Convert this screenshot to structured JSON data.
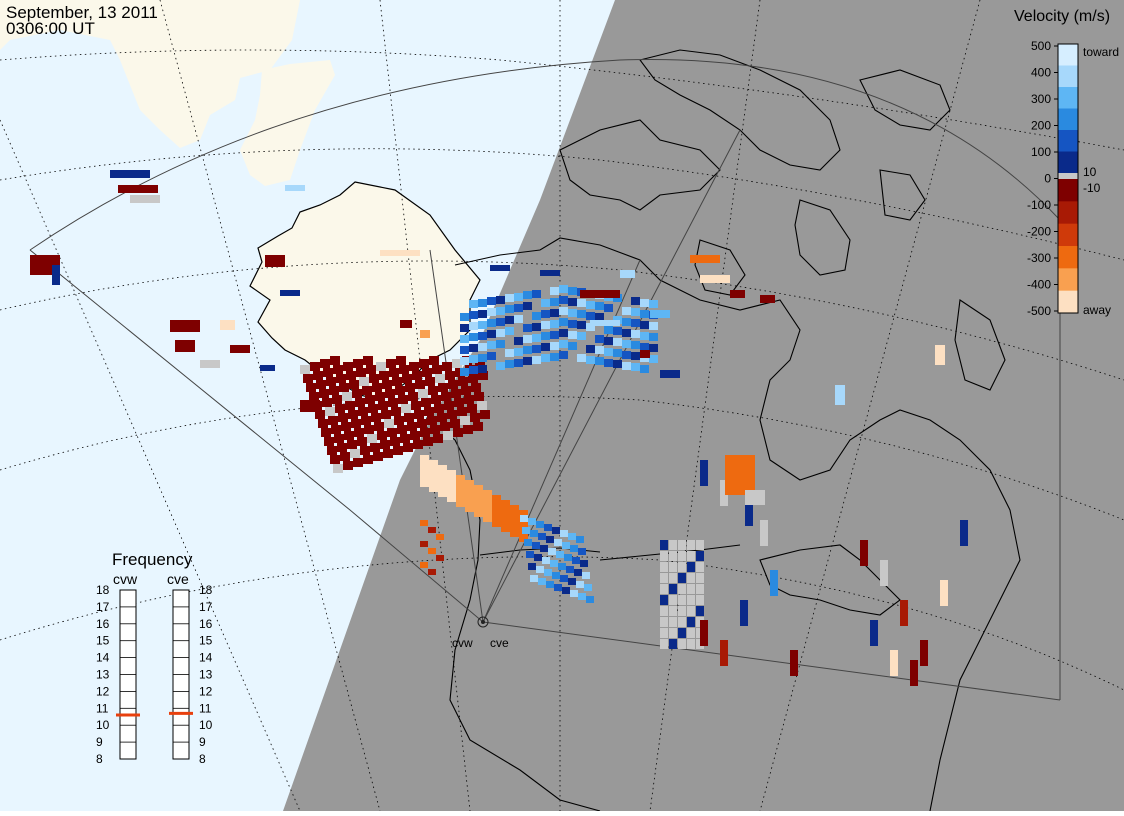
{
  "header": {
    "date": "September, 13 2011",
    "time": "0306:00 UT"
  },
  "colorbar": {
    "title": "Velocity (m/s)",
    "tick_labels": [
      "500",
      "400",
      "300",
      "200",
      "100",
      "0",
      "-100",
      "-200",
      "-300",
      "-400",
      "-500"
    ],
    "small_labels": [
      "10",
      "-10"
    ],
    "toward_label": "toward",
    "away_label": "away",
    "colors": [
      "#d6eeff",
      "#a7d8fb",
      "#5eb6f4",
      "#2a8ae0",
      "#1555c2",
      "#0a2a8a",
      "#c8c8c8",
      "#7e0000",
      "#a81a05",
      "#cf3a0a",
      "#ee6a10",
      "#f9a050",
      "#fde0c2"
    ]
  },
  "frequency": {
    "title": "Frequency",
    "radars": [
      "cvw",
      "cve"
    ],
    "scale": [
      "18",
      "17",
      "16",
      "15",
      "14",
      "13",
      "12",
      "11",
      "10",
      "9",
      "8"
    ],
    "values_mhz": [
      10.6,
      10.7
    ],
    "marker_color": "#e8400e"
  },
  "radars": {
    "labels": [
      "cvw",
      "cve"
    ]
  },
  "map": {
    "ocean_color": "#e8f6ff",
    "dark_side_color": "#999999",
    "land_color": "#fbf8ea"
  }
}
